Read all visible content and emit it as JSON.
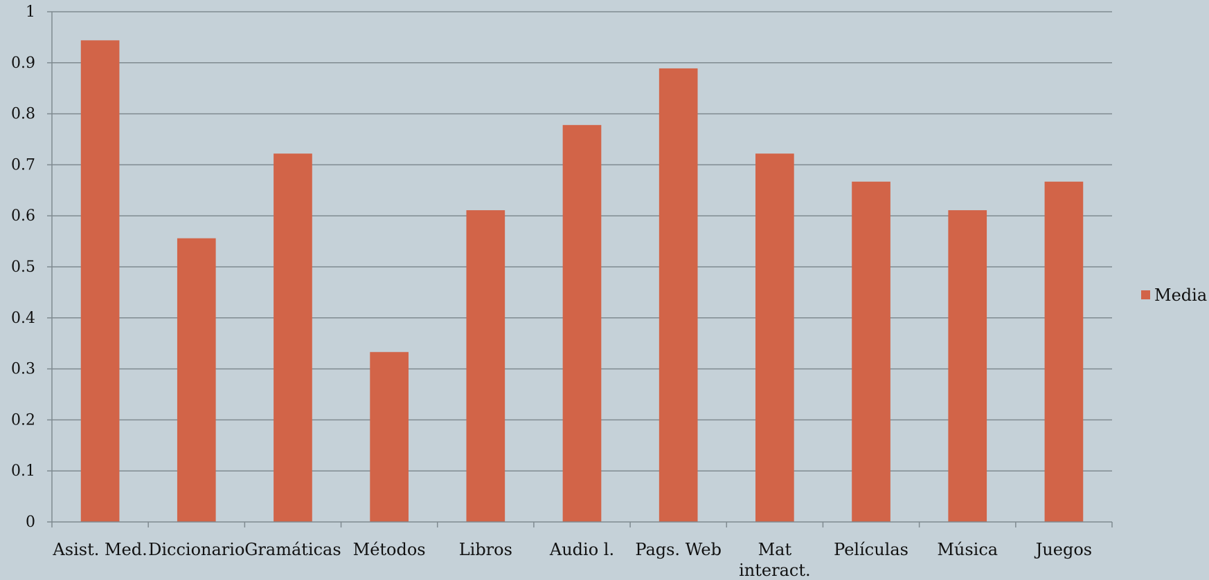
{
  "chart_data": {
    "type": "bar",
    "categories": [
      "Asist. Med.",
      "Diccionario",
      "Gramáticas",
      "Métodos",
      "Libros",
      "Audio l.",
      "Pags. Web",
      "Mat interact.",
      "Películas",
      "Música",
      "Juegos"
    ],
    "category_label_lines": [
      [
        "Asist. Med."
      ],
      [
        "Diccionario"
      ],
      [
        "Gramáticas"
      ],
      [
        "Métodos"
      ],
      [
        "Libros"
      ],
      [
        "Audio l."
      ],
      [
        "Pags. Web"
      ],
      [
        "Mat",
        "interact."
      ],
      [
        "Películas"
      ],
      [
        "Música"
      ],
      [
        "Juegos"
      ]
    ],
    "series": [
      {
        "name": "Media",
        "values": [
          0.944,
          0.556,
          0.722,
          0.333,
          0.611,
          0.778,
          0.889,
          0.722,
          0.667,
          0.611,
          0.667
        ]
      }
    ],
    "yticks": [
      "0",
      "0.1",
      "0.2",
      "0.3",
      "0.4",
      "0.5",
      "0.6",
      "0.7",
      "0.8",
      "0.9",
      "1"
    ],
    "ylim": [
      0,
      1
    ],
    "grid": true,
    "legend_position": "right",
    "colors": {
      "background": "#c5d1d8",
      "bar": "#d26448",
      "grid": "#7f8a90",
      "axis": "#7f8a90"
    }
  }
}
